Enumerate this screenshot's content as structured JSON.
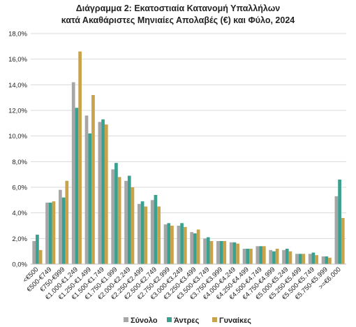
{
  "chart_data": {
    "type": "bar",
    "title": "Διάγραμμα 2: Εκατοστιαία Κατανομή Υπαλλήλων",
    "subtitle": "κατά Ακαθάριστες Μηνιαίες Απολαβές (€) και Φύλο, 2024",
    "xlabel": "",
    "ylabel": "",
    "ylim": [
      0,
      18
    ],
    "ytick_step": 2,
    "ytick_labels": [
      "0,0%",
      "2,0%",
      "4,0%",
      "6,0%",
      "8,0%",
      "10,0%",
      "12,0%",
      "14,0%",
      "16,0%",
      "18,0%"
    ],
    "grid": true,
    "legend_position": "bottom",
    "categories": [
      "<€500",
      "€500-€749",
      "€750-€999",
      "€1.000-€1.249",
      "€1.250-€1.499",
      "€1.500-€1.749",
      "€1.750-€1.999",
      "€2.000-€2.249",
      "€2.250-€2.499",
      "€2.500-€2.749",
      "€2.750-€2.999",
      "€3.000-€3.249",
      "€3.250-€3.499",
      "€3.500-€3.749",
      "€3.750-€3.999",
      "€4.000-€4.249",
      "€4.250-€4.499",
      "€4.500-€4.749",
      "€4.750-€4.999",
      "€5.000-€5.249",
      "€5.250-€5.499",
      "€5.500-€5.749",
      "€5.750-€5.999",
      ">=€6.000"
    ],
    "series": [
      {
        "name": "Σύνολο",
        "color": "#a6a6a6",
        "values": [
          1.8,
          4.8,
          5.8,
          14.2,
          11.6,
          11.1,
          7.4,
          6.5,
          4.7,
          5.0,
          3.1,
          3.0,
          2.5,
          2.0,
          1.8,
          1.7,
          1.2,
          1.4,
          1.1,
          1.1,
          0.8,
          0.8,
          0.6,
          5.3
        ]
      },
      {
        "name": "Άντρες",
        "color": "#3aa08f",
        "values": [
          2.3,
          4.8,
          5.2,
          12.2,
          10.2,
          11.3,
          7.9,
          6.9,
          4.9,
          5.4,
          3.2,
          3.2,
          2.4,
          2.1,
          1.8,
          1.7,
          1.2,
          1.4,
          1.0,
          1.2,
          0.8,
          0.9,
          0.6,
          6.6
        ]
      },
      {
        "name": "Γυναίκες",
        "color": "#c9a24c",
        "values": [
          1.1,
          4.9,
          6.5,
          16.6,
          13.2,
          10.9,
          6.8,
          6.0,
          4.5,
          4.5,
          3.0,
          2.9,
          2.7,
          1.8,
          1.8,
          1.6,
          1.2,
          1.4,
          1.2,
          1.0,
          0.8,
          0.7,
          0.5,
          3.6
        ]
      }
    ]
  }
}
